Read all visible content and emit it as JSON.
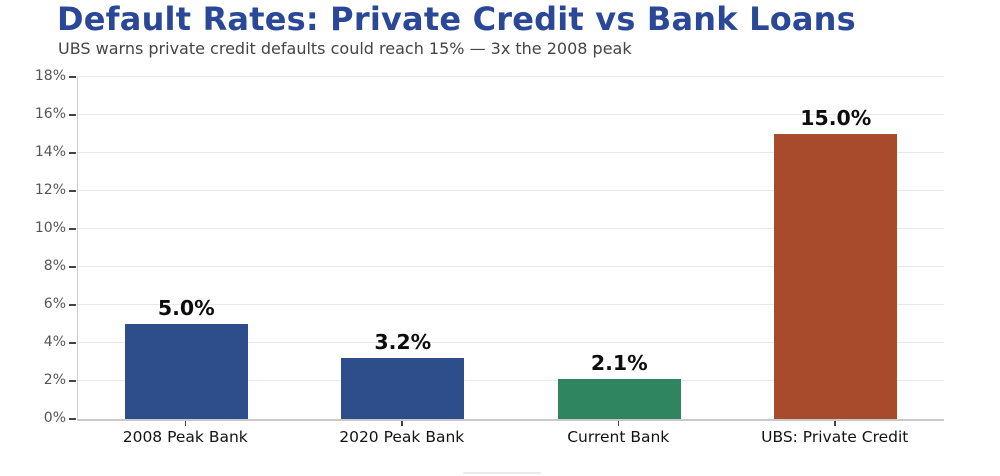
{
  "header": {
    "title": "Default Rates: Private Credit vs Bank Loans",
    "subtitle": "UBS warns private credit defaults could reach 15% — 3x the 2008 peak",
    "title_color": "#2a4798",
    "subtitle_color": "#454545"
  },
  "chart_data": {
    "type": "bar",
    "title": "Default Rates: Private Credit vs Bank Loans",
    "subtitle": "UBS warns private credit defaults could reach 15% — 3x the 2008 peak",
    "categories": [
      "2008 Peak Bank",
      "2020 Peak Bank",
      "Current Bank",
      "UBS: Private Credit"
    ],
    "values": [
      5.0,
      3.2,
      2.1,
      15.0
    ],
    "value_labels": [
      "5.0%",
      "3.2%",
      "2.1%",
      "15.0%"
    ],
    "bar_colors": [
      "#2d4d8b",
      "#2d4d8b",
      "#2e8560",
      "#a84b2c"
    ],
    "xlabel": "",
    "ylabel": "",
    "ylim": [
      0,
      18
    ],
    "ytick_step": 2,
    "ytick_labels": [
      "0%",
      "2%",
      "4%",
      "6%",
      "8%",
      "10%",
      "12%",
      "14%",
      "16%",
      "18%"
    ],
    "grid": true,
    "legend": "none",
    "colors": {
      "gridline": "#e9e9e9",
      "axis_spine": "#cfcfcf",
      "tick_mark": "#444444",
      "ytick_label": "#555555",
      "xtick_label": "#141414",
      "value_label": "#0d0d0d",
      "background": "#ffffff"
    }
  }
}
